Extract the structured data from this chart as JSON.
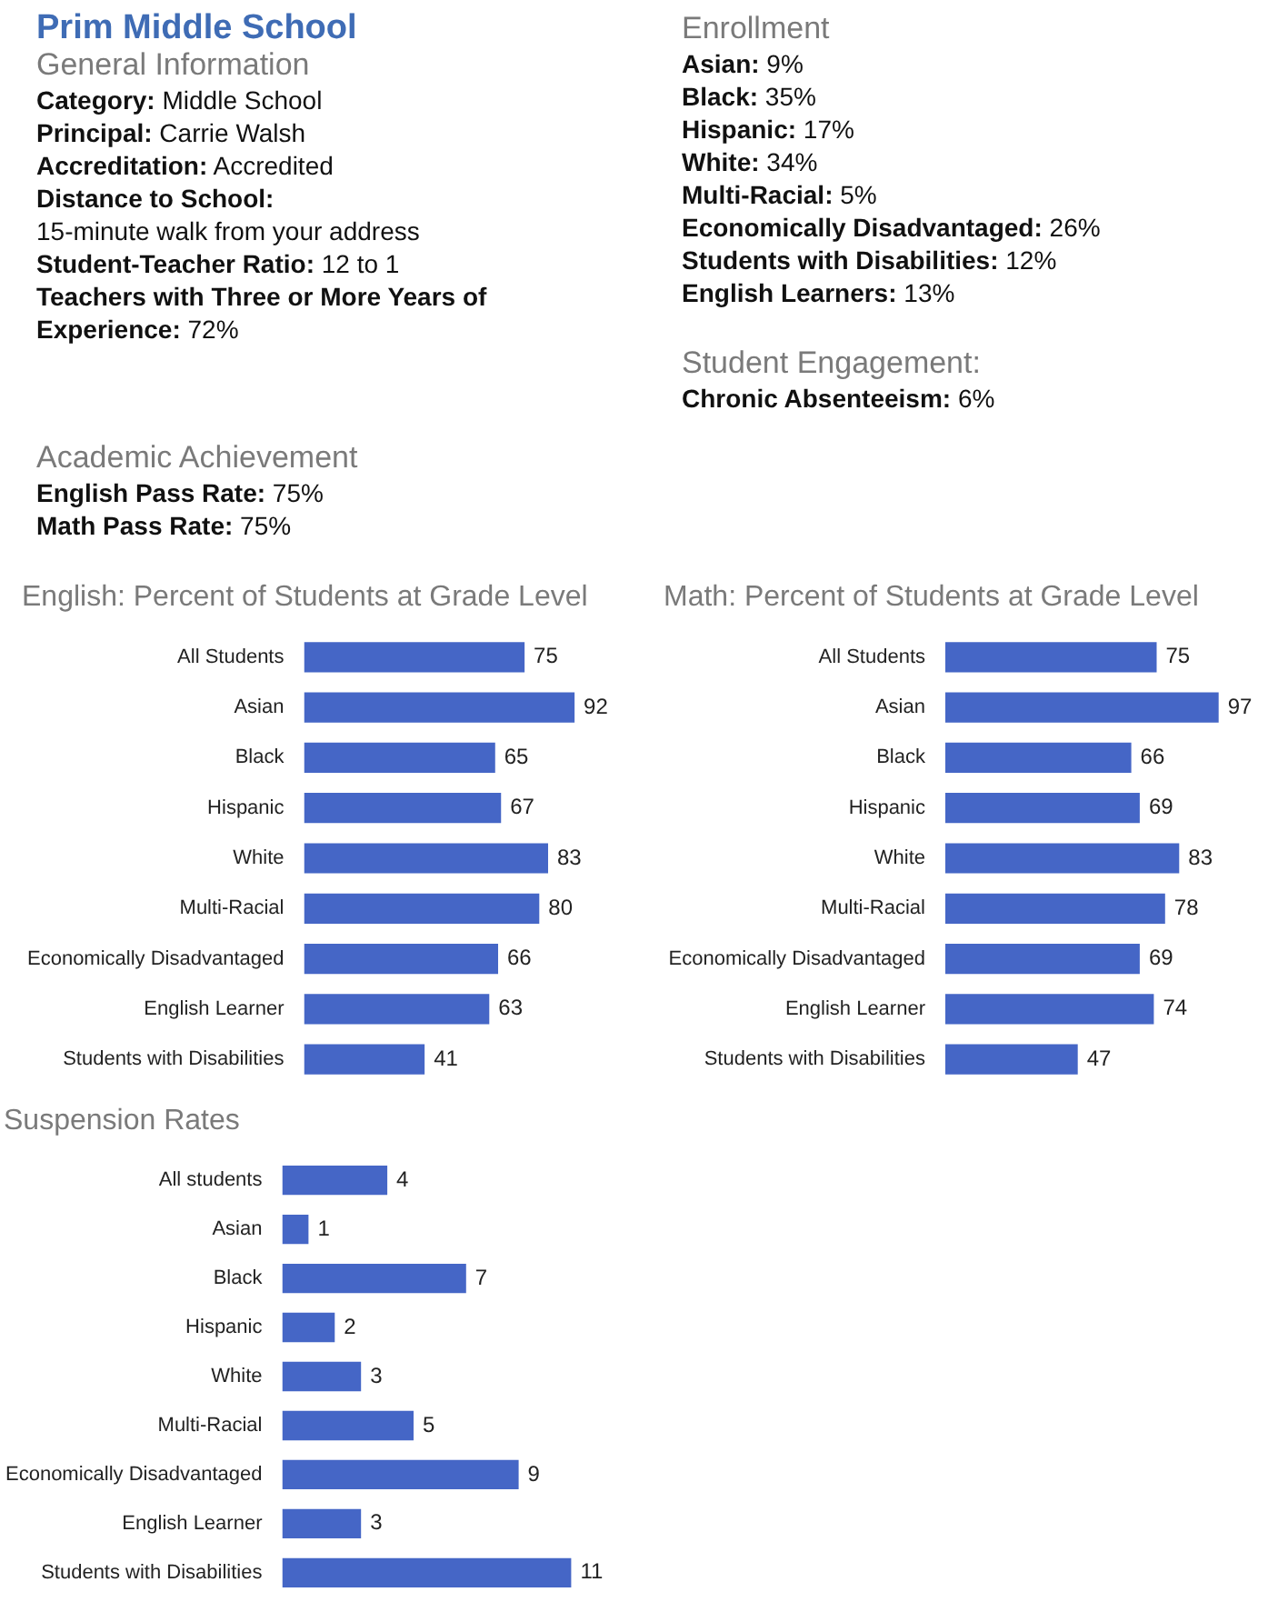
{
  "chart_data": [
    {
      "type": "other",
      "title": "Prim Middle School",
      "subtitle": "General Information",
      "annotations": [
        "Category: Middle School",
        "Principal: Carrie Walsh",
        "Accreditation: Accredited",
        "Distance to School:",
        "15-minute walk from your address",
        "Student-Teacher Ratio: 12 to 1",
        "Teachers with Three or More Years of Experience: 72%"
      ]
    },
    {
      "type": "other",
      "title": "Academic Achievement",
      "annotations": [
        "English Pass Rate: 75%",
        "Math Pass Rate: 75%"
      ]
    },
    {
      "type": "other",
      "title": "Enrollment",
      "annotations": [
        "Asian: 9%",
        "Black: 35%",
        "Hispanic: 17%",
        "White: 34%",
        "Multi-Racial: 5%",
        "Economically Disadvantaged: 26%",
        "Students with Disabilities: 12%",
        "English Learners: 13%"
      ]
    },
    {
      "type": "other",
      "title": "Student Engagement:",
      "annotations": [
        "Chronic Absenteeism: 6%"
      ]
    },
    {
      "type": "bar",
      "orientation": "horizontal",
      "title": "English: Percent of Students at Grade Level",
      "categories": [
        "All Students",
        "Asian",
        "Black",
        "Hispanic",
        "White",
        "Multi-Racial",
        "Economically Disadvantaged",
        "English Learner",
        "Students with Disabilities"
      ],
      "values": [
        75,
        92,
        65,
        67,
        83,
        80,
        66,
        63,
        41
      ],
      "color": "#4566c6",
      "data_labels": true
    },
    {
      "type": "bar",
      "orientation": "horizontal",
      "title": "Math: Percent of Students at Grade Level",
      "categories": [
        "All Students",
        "Asian",
        "Black",
        "Hispanic",
        "White",
        "Multi-Racial",
        "Economically Disadvantaged",
        "English Learner",
        "Students with Disabilities"
      ],
      "values": [
        75,
        97,
        66,
        69,
        83,
        78,
        69,
        74,
        47
      ],
      "color": "#4566c6",
      "data_labels": true
    },
    {
      "type": "bar",
      "orientation": "horizontal",
      "title": "Suspension Rates",
      "categories": [
        "All students",
        "Asian",
        "Black",
        "Hispanic",
        "White",
        "Multi-Racial",
        "Economically Disadvantaged",
        "English Learner",
        "Students with Disabilities"
      ],
      "values": [
        4,
        1,
        7,
        2,
        3,
        5,
        9,
        3,
        11
      ],
      "color": "#4566c6",
      "data_labels": true
    }
  ]
}
